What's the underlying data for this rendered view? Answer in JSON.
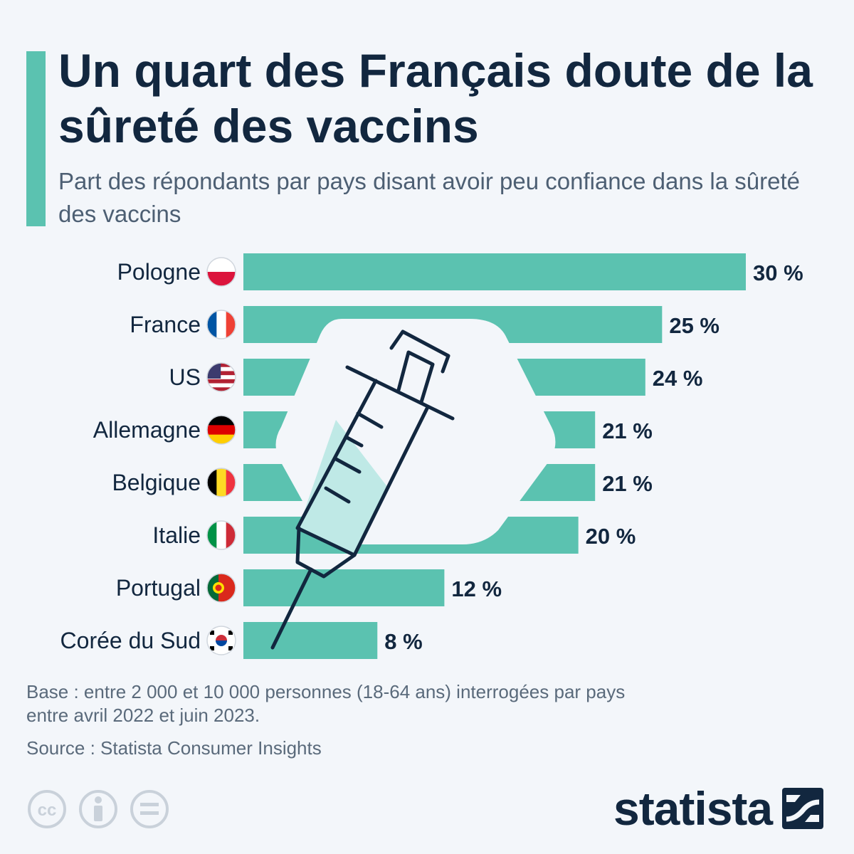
{
  "title": "Un quart des Français doute de la sûreté des vaccins",
  "subtitle": "Part des répondants par pays disant avoir peu confiance dans la sûreté des vaccins",
  "chart_data": {
    "type": "bar",
    "orientation": "horizontal",
    "categories": [
      "Pologne",
      "France",
      "US",
      "Allemagne",
      "Belgique",
      "Italie",
      "Portugal",
      "Corée du Sud"
    ],
    "values": [
      30,
      25,
      24,
      21,
      21,
      20,
      12,
      8
    ],
    "value_labels": [
      "30 %",
      "25 %",
      "24 %",
      "21 %",
      "21 %",
      "20 %",
      "12 %",
      "8 %"
    ],
    "unit": "%",
    "xlim": [
      0,
      30
    ],
    "grid": false,
    "legend": "none",
    "bar_color": "#5bc2b0",
    "flag_icons": [
      "flag-poland",
      "flag-france",
      "flag-us",
      "flag-germany",
      "flag-belgium",
      "flag-italy",
      "flag-portugal",
      "flag-south-korea"
    ]
  },
  "notes": {
    "base": "Base : entre 2 000 et 10 000 personnes (18-64 ans) interrogées par pays entre avril 2022 et juin 2023.",
    "source": "Source : Statista Consumer Insights"
  },
  "brand": {
    "name": "statista"
  },
  "colors": {
    "accent": "#5bc2b0",
    "text": "#12273f",
    "background": "#f3f6fa",
    "note": "#5a6a7b"
  },
  "icons": {
    "license": [
      "cc-icon",
      "attribution-icon",
      "no-derivatives-icon"
    ],
    "decoration": "syringe-icon",
    "logo": "statista-logo-icon"
  }
}
